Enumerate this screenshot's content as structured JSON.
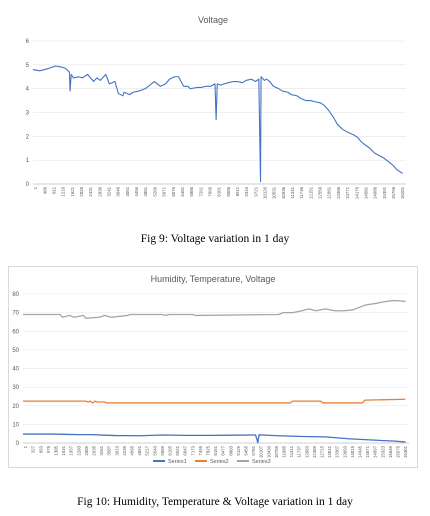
{
  "figures": [
    {
      "caption": "Fig 9: Voltage variation in 1 day"
    },
    {
      "caption": "Fig 10: Humidity, Temperature & Voltage variation in 1 day"
    }
  ],
  "chart_data": [
    {
      "type": "line",
      "title": "Voltage",
      "xlabel": "",
      "ylabel": "",
      "ylim": [
        0,
        6
      ],
      "yticks": [
        "0",
        "1",
        "2",
        "3",
        "4",
        "5",
        "6"
      ],
      "grid": "horizontal",
      "legend": "none",
      "x_tick_labels": [
        "1",
        "406",
        "811",
        "1216",
        "1621",
        "2026",
        "2431",
        "2836",
        "3241",
        "3646",
        "4051",
        "4456",
        "4861",
        "5266",
        "5671",
        "6076",
        "6481",
        "6886",
        "7291",
        "7696",
        "8101",
        "8506",
        "8911",
        "9316",
        "9721",
        "10126",
        "10531",
        "10936",
        "11341",
        "11746",
        "12151",
        "12556",
        "12961",
        "13366",
        "13771",
        "14176",
        "14581",
        "14986",
        "15391",
        "15796",
        "16201"
      ],
      "xlim": [
        1,
        16600
      ],
      "colors": {
        "line": "#4472c4"
      },
      "series": [
        {
          "x": [
            1,
            300,
            700,
            1000,
            1300,
            1450,
            1620,
            1650,
            1700,
            1800,
            2026,
            2200,
            2431,
            2700,
            2836,
            3000,
            3241,
            3400,
            3646,
            3800,
            4000,
            4051,
            4300,
            4456,
            4700,
            4861,
            5000,
            5266,
            5400,
            5671,
            5900,
            6076,
            6300,
            6481,
            6700,
            6886,
            7000,
            7291,
            7500,
            7696,
            7900,
            8100,
            8150,
            8200,
            8350,
            8506,
            8700,
            8911,
            9100,
            9316,
            9500,
            9721,
            9900,
            10050,
            10126,
            10150,
            10300,
            10400,
            10531,
            10700,
            10936,
            11100,
            11341,
            11500,
            11746,
            11900,
            12151,
            12350,
            12556,
            12800,
            12961,
            13150,
            13366,
            13550,
            13771,
            13950,
            14176,
            14300,
            14450,
            14581,
            14700,
            14986,
            15200,
            15391,
            15600,
            15796,
            16000,
            16201,
            16350,
            16450
          ],
          "y": [
            4.8,
            4.75,
            4.85,
            4.95,
            4.9,
            4.85,
            4.7,
            3.9,
            4.6,
            4.45,
            4.5,
            4.45,
            4.6,
            4.3,
            4.45,
            4.35,
            4.6,
            4.2,
            4.3,
            3.8,
            3.7,
            3.85,
            3.75,
            3.85,
            3.9,
            3.95,
            4.0,
            4.2,
            4.3,
            4.1,
            4.2,
            4.4,
            4.5,
            4.5,
            4.1,
            4.1,
            4.0,
            4.05,
            4.05,
            4.1,
            4.1,
            4.2,
            2.7,
            4.2,
            4.15,
            4.2,
            4.25,
            4.3,
            4.3,
            4.25,
            4.35,
            4.4,
            4.3,
            4.4,
            0.1,
            4.5,
            4.35,
            4.4,
            4.3,
            4.1,
            4.0,
            3.9,
            3.85,
            3.75,
            3.7,
            3.6,
            3.5,
            3.5,
            3.45,
            3.4,
            3.3,
            3.1,
            2.8,
            2.5,
            2.3,
            2.2,
            2.1,
            2.05,
            1.95,
            1.8,
            1.7,
            1.5,
            1.3,
            1.2,
            1.1,
            0.95,
            0.8,
            0.6,
            0.5,
            0.45
          ]
        }
      ]
    },
    {
      "type": "line",
      "title": "Humidity, Temperature, Voltage",
      "xlabel": "",
      "ylabel": "",
      "ylim": [
        0,
        80
      ],
      "yticks": [
        "0",
        "10",
        "20",
        "30",
        "40",
        "50",
        "60",
        "70",
        "80"
      ],
      "grid": "horizontal",
      "legend": "bottom",
      "x_tick_labels": [
        "1",
        "327",
        "653",
        "979",
        "1305",
        "1631",
        "1957",
        "2283",
        "2609",
        "2935",
        "3261",
        "3587",
        "3913",
        "4239",
        "4565",
        "4891",
        "5217",
        "5543",
        "5869",
        "6195",
        "6521",
        "6847",
        "7173",
        "7499",
        "7825",
        "8151",
        "8477",
        "8803",
        "9129",
        "9455",
        "9781",
        "10107",
        "10433",
        "10759",
        "11085",
        "11411",
        "11737",
        "12063",
        "12389",
        "12715",
        "13041",
        "13367",
        "13693",
        "14019",
        "14345",
        "14671",
        "14997",
        "15323",
        "15649",
        "15975",
        "16301"
      ],
      "xlim": [
        1,
        16600
      ],
      "series": [
        {
          "name": "Series1",
          "color": "#4472c4",
          "x": [
            1,
            1200,
            2000,
            2500,
            3000,
            3500,
            4000,
            5000,
            6000,
            7000,
            8000,
            9000,
            10000,
            10100,
            10150,
            10300,
            11000,
            12000,
            13000,
            14000,
            15000,
            16000,
            16450
          ],
          "y": [
            4.8,
            4.8,
            4.6,
            4.5,
            4.5,
            4.2,
            4.0,
            3.9,
            4.3,
            4.1,
            4.1,
            4.2,
            4.3,
            0.2,
            4.4,
            4.3,
            3.9,
            3.5,
            3.3,
            2.3,
            1.6,
            1.0,
            0.5
          ]
        },
        {
          "name": "Series2",
          "color": "#ed7d31",
          "x": [
            1,
            2700,
            2800,
            2900,
            3000,
            3100,
            3200,
            3500,
            3600,
            4000,
            11500,
            11600,
            12800,
            12900,
            14600,
            14700,
            16450
          ],
          "y": [
            22.5,
            22.5,
            22,
            22.5,
            21.5,
            22.5,
            22,
            22,
            21.5,
            21.5,
            21.5,
            22.5,
            22.5,
            21.5,
            21.5,
            23,
            23.5
          ]
        },
        {
          "name": "Series3",
          "color": "#a5a5a5",
          "x": [
            1,
            1600,
            1700,
            2000,
            2200,
            2600,
            2700,
            3300,
            3500,
            3800,
            4500,
            4600,
            6000,
            6100,
            6300,
            7300,
            7400,
            11000,
            11200,
            11600,
            12000,
            12300,
            12600,
            13000,
            13400,
            13800,
            14200,
            14700,
            15200,
            15600,
            16000,
            16450
          ],
          "y": [
            69,
            69,
            67.5,
            68.5,
            67.5,
            68.5,
            67,
            67.5,
            68.5,
            67.5,
            68.5,
            69,
            69,
            68.5,
            69,
            69,
            68.5,
            69,
            70,
            70,
            71,
            72,
            71,
            72,
            71,
            71,
            71.5,
            74,
            75,
            76,
            76.5,
            76
          ]
        }
      ]
    }
  ]
}
